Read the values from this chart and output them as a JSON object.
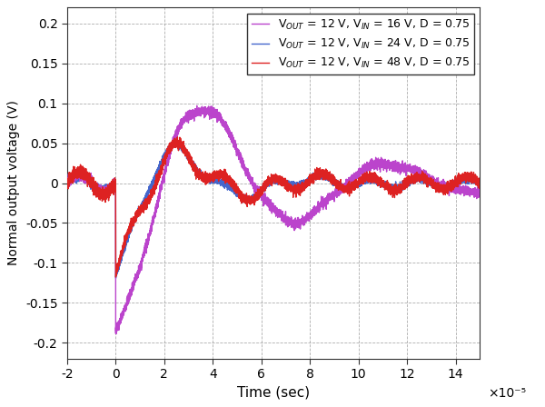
{
  "xlabel": "Time (sec)",
  "ylabel": "Normal output voltage (V)",
  "xlim": [
    -2e-05,
    0.00015
  ],
  "ylim": [
    -0.22,
    0.22
  ],
  "xticks": [
    -2e-05,
    0,
    2e-05,
    4e-05,
    6e-05,
    8e-05,
    0.0001,
    0.00012,
    0.00014
  ],
  "xtick_labels": [
    "-2",
    "0",
    "2",
    "4",
    "6",
    "8",
    "10",
    "12",
    "14"
  ],
  "yticks": [
    -0.2,
    -0.15,
    -0.1,
    -0.05,
    0,
    0.05,
    0.1,
    0.15,
    0.2
  ],
  "ytick_labels": [
    "-0.2",
    "-0.15",
    "-0.1",
    "-0.05",
    "0",
    "0.05",
    "0.1",
    "0.15",
    "0.2"
  ],
  "scale_label": "×10⁻⁵",
  "background_color": "#ffffff",
  "grid_color": "#999999",
  "curves": [
    {
      "label": "V$_{OUT}$ = 12 V, V$_{IN}$ = 16 V, D = 0.75",
      "color": "#bb44cc",
      "lw": 1.0
    },
    {
      "label": "V$_{OUT}$ = 12 V, V$_{IN}$ = 24 V, D = 0.75",
      "color": "#4466cc",
      "lw": 1.0
    },
    {
      "label": "V$_{OUT}$ = 12 V, V$_{IN}$ = 48 V, D = 0.75",
      "color": "#dd2222",
      "lw": 1.0
    }
  ]
}
